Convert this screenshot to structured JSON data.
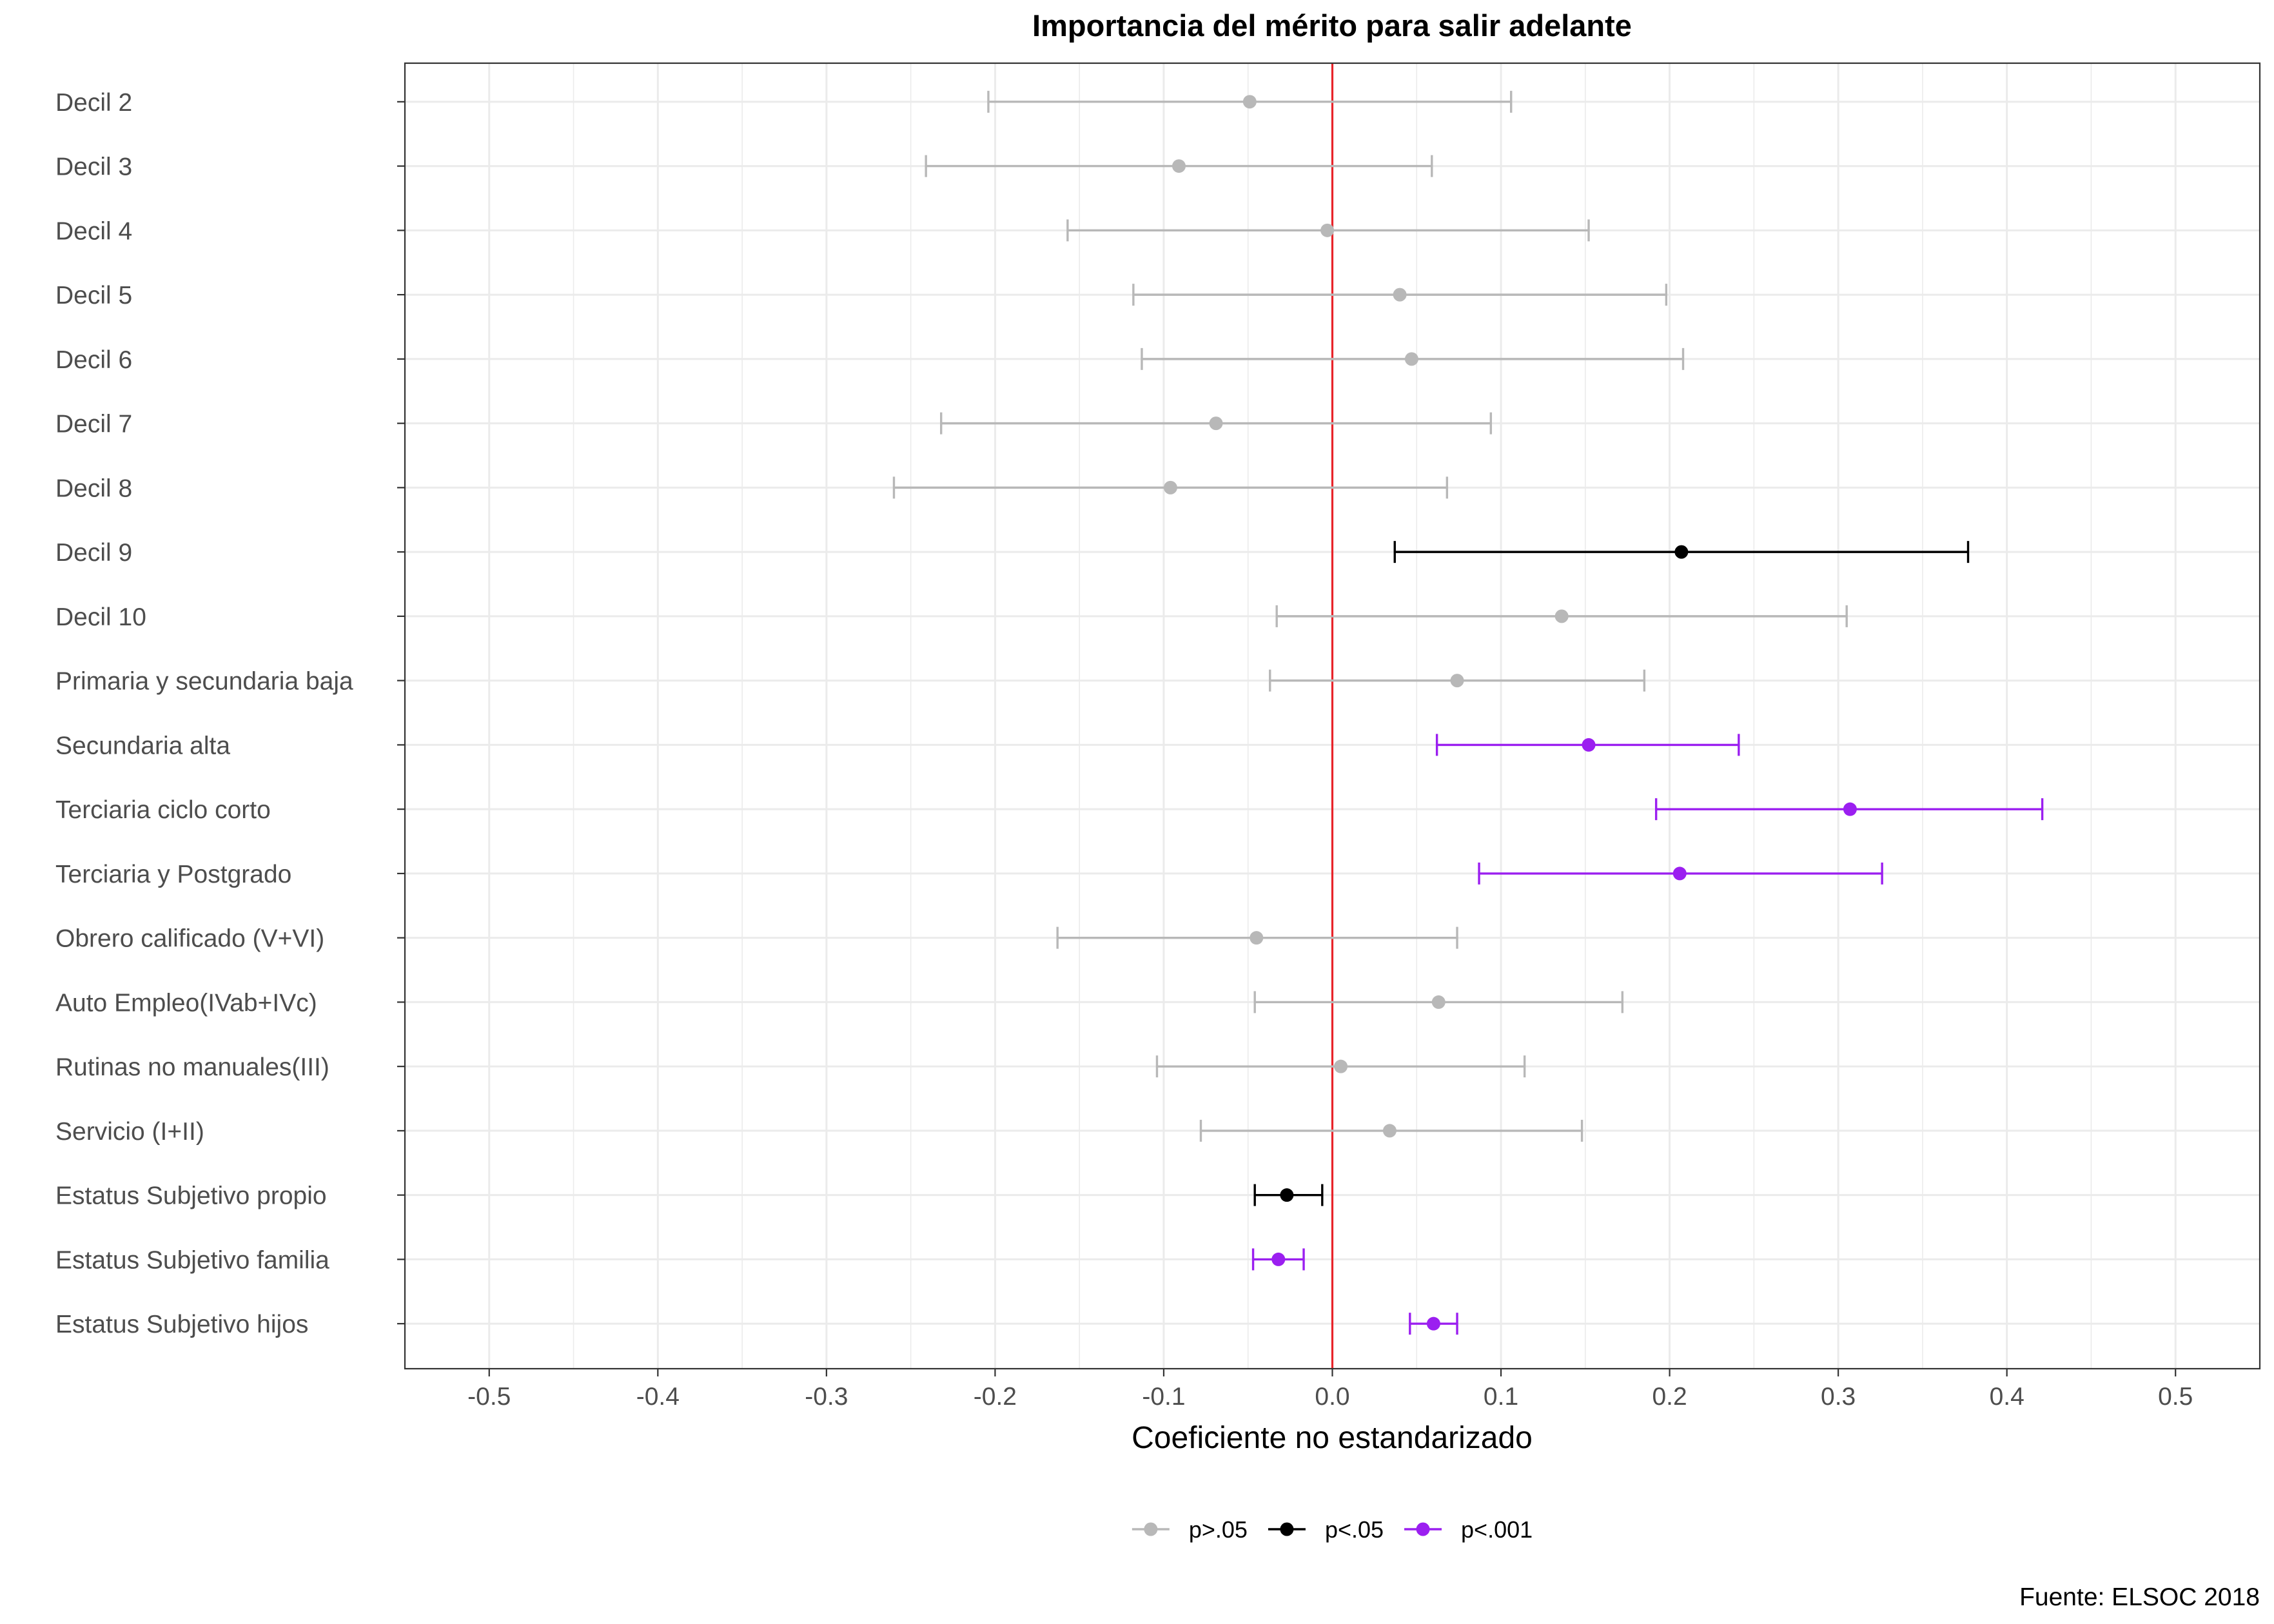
{
  "chart_data": {
    "type": "scatter",
    "title": "Importancia del mérito para salir adelante",
    "xlabel": "Coeficiente no estandarizado",
    "caption": "Fuente: ELSOC 2018",
    "xlim": [
      -0.55,
      0.55
    ],
    "x_ticks": [
      -0.5,
      -0.4,
      -0.3,
      -0.2,
      -0.1,
      0.0,
      0.1,
      0.2,
      0.3,
      0.4,
      0.5
    ],
    "x_tick_labels": [
      "-0.5",
      "-0.4",
      "-0.3",
      "-0.2",
      "-0.1",
      "0.0",
      "0.1",
      "0.2",
      "0.3",
      "0.4",
      "0.5"
    ],
    "reference_line": {
      "x": 0,
      "color": "#e8242a"
    },
    "grid": true,
    "legend_position": "bottom",
    "legend": [
      {
        "key": "ns",
        "label": "p>.05",
        "color": "#b8b8b8"
      },
      {
        "key": "p05",
        "label": "p<.05",
        "color": "#000000"
      },
      {
        "key": "p001",
        "label": "p<.001",
        "color": "#9b1ff0"
      }
    ],
    "rows": [
      {
        "label": "Decil 2",
        "estimate": -0.049,
        "lower": -0.204,
        "upper": 0.106,
        "sig": "ns"
      },
      {
        "label": "Decil 3",
        "estimate": -0.091,
        "lower": -0.241,
        "upper": 0.059,
        "sig": "ns"
      },
      {
        "label": "Decil 4",
        "estimate": -0.003,
        "lower": -0.157,
        "upper": 0.152,
        "sig": "ns"
      },
      {
        "label": "Decil 5",
        "estimate": 0.04,
        "lower": -0.118,
        "upper": 0.198,
        "sig": "ns"
      },
      {
        "label": "Decil 6",
        "estimate": 0.047,
        "lower": -0.113,
        "upper": 0.208,
        "sig": "ns"
      },
      {
        "label": "Decil 7",
        "estimate": -0.069,
        "lower": -0.232,
        "upper": 0.094,
        "sig": "ns"
      },
      {
        "label": "Decil 8",
        "estimate": -0.096,
        "lower": -0.26,
        "upper": 0.068,
        "sig": "ns"
      },
      {
        "label": "Decil 9",
        "estimate": 0.207,
        "lower": 0.037,
        "upper": 0.377,
        "sig": "p05"
      },
      {
        "label": "Decil 10",
        "estimate": 0.136,
        "lower": -0.033,
        "upper": 0.305,
        "sig": "ns"
      },
      {
        "label": "Primaria y secundaria baja",
        "estimate": 0.074,
        "lower": -0.037,
        "upper": 0.185,
        "sig": "ns"
      },
      {
        "label": "Secundaria alta",
        "estimate": 0.152,
        "lower": 0.062,
        "upper": 0.241,
        "sig": "p001"
      },
      {
        "label": "Terciaria ciclo corto",
        "estimate": 0.307,
        "lower": 0.192,
        "upper": 0.421,
        "sig": "p001"
      },
      {
        "label": "Terciaria y Postgrado",
        "estimate": 0.206,
        "lower": 0.087,
        "upper": 0.326,
        "sig": "p001"
      },
      {
        "label": "Obrero calificado (V+VI)",
        "estimate": -0.045,
        "lower": -0.163,
        "upper": 0.074,
        "sig": "ns"
      },
      {
        "label": "Auto Empleo(IVab+IVc)",
        "estimate": 0.063,
        "lower": -0.046,
        "upper": 0.172,
        "sig": "ns"
      },
      {
        "label": "Rutinas no manuales(III)",
        "estimate": 0.005,
        "lower": -0.104,
        "upper": 0.114,
        "sig": "ns"
      },
      {
        "label": "Servicio (I+II)",
        "estimate": 0.034,
        "lower": -0.078,
        "upper": 0.148,
        "sig": "ns"
      },
      {
        "label": "Estatus Subjetivo propio",
        "estimate": -0.027,
        "lower": -0.046,
        "upper": -0.006,
        "sig": "p05"
      },
      {
        "label": "Estatus Subjetivo familia",
        "estimate": -0.032,
        "lower": -0.047,
        "upper": -0.017,
        "sig": "p001"
      },
      {
        "label": "Estatus Subjetivo hijos",
        "estimate": 0.06,
        "lower": 0.046,
        "upper": 0.074,
        "sig": "p001"
      }
    ]
  }
}
